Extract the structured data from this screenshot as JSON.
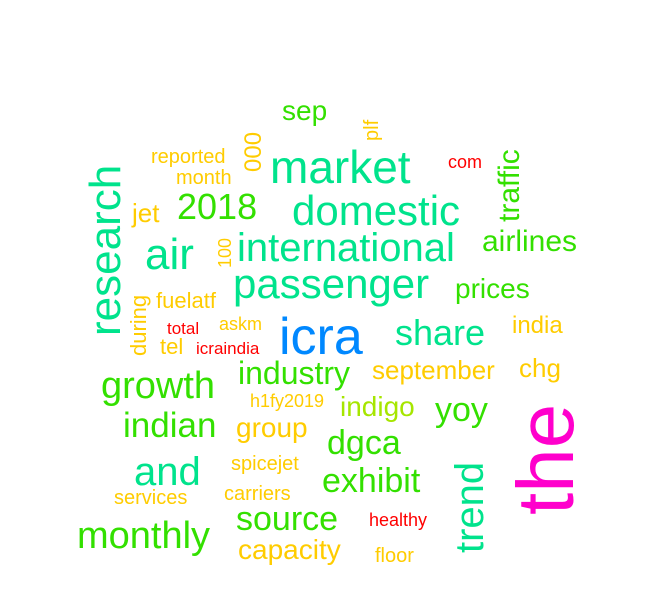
{
  "words": [
    {
      "text": "the",
      "color": "#FF00CC"
    },
    {
      "text": "icra",
      "color": "#0088FF"
    },
    {
      "text": "research",
      "color": "#00E38C"
    },
    {
      "text": "market",
      "color": "#00E38C"
    },
    {
      "text": "domestic",
      "color": "#00E38C"
    },
    {
      "text": "international",
      "color": "#00E38C"
    },
    {
      "text": "passenger",
      "color": "#00E38C"
    },
    {
      "text": "air",
      "color": "#00E38C"
    },
    {
      "text": "trend",
      "color": "#00E38C"
    },
    {
      "text": "share",
      "color": "#00E38C"
    },
    {
      "text": "and",
      "color": "#00E38C"
    },
    {
      "text": "growth",
      "color": "#33E000"
    },
    {
      "text": "monthly",
      "color": "#33E000"
    },
    {
      "text": "indian",
      "color": "#33E000"
    },
    {
      "text": "2018",
      "color": "#33E000"
    },
    {
      "text": "airlines",
      "color": "#33E000"
    },
    {
      "text": "traffic",
      "color": "#33E000"
    },
    {
      "text": "exhibit",
      "color": "#33E000"
    },
    {
      "text": "source",
      "color": "#33E000"
    },
    {
      "text": "dgca",
      "color": "#33E000"
    },
    {
      "text": "industry",
      "color": "#33E000"
    },
    {
      "text": "yoy",
      "color": "#33E000"
    },
    {
      "text": "prices",
      "color": "#33E000"
    },
    {
      "text": "sep",
      "color": "#33E000"
    },
    {
      "text": "indigo",
      "color": "#A6E600"
    },
    {
      "text": "group",
      "color": "#FFCC00"
    },
    {
      "text": "capacity",
      "color": "#FFCC00"
    },
    {
      "text": "september",
      "color": "#FFCC00"
    },
    {
      "text": "chg",
      "color": "#FFCC00"
    },
    {
      "text": "india",
      "color": "#FFCC00"
    },
    {
      "text": "jet",
      "color": "#FFCC00"
    },
    {
      "text": "fuelatf",
      "color": "#FFCC00"
    },
    {
      "text": "during",
      "color": "#FFCC00"
    },
    {
      "text": "tel",
      "color": "#FFCC00"
    },
    {
      "text": "askm",
      "color": "#FFCC00"
    },
    {
      "text": "reported",
      "color": "#FFCC00"
    },
    {
      "text": "month",
      "color": "#FFCC00"
    },
    {
      "text": "000",
      "color": "#FFCC00"
    },
    {
      "text": "100",
      "color": "#FFCC00"
    },
    {
      "text": "plf",
      "color": "#FFCC00"
    },
    {
      "text": "h1fy2019",
      "color": "#FFCC00"
    },
    {
      "text": "spicejet",
      "color": "#FFCC00"
    },
    {
      "text": "carriers",
      "color": "#FFCC00"
    },
    {
      "text": "services",
      "color": "#FFCC00"
    },
    {
      "text": "floor",
      "color": "#FFCC00"
    },
    {
      "text": "com",
      "color": "#FF0000"
    },
    {
      "text": "total",
      "color": "#FF0000"
    },
    {
      "text": "icraindia",
      "color": "#FF0000"
    },
    {
      "text": "healthy",
      "color": "#FF0000"
    }
  ]
}
